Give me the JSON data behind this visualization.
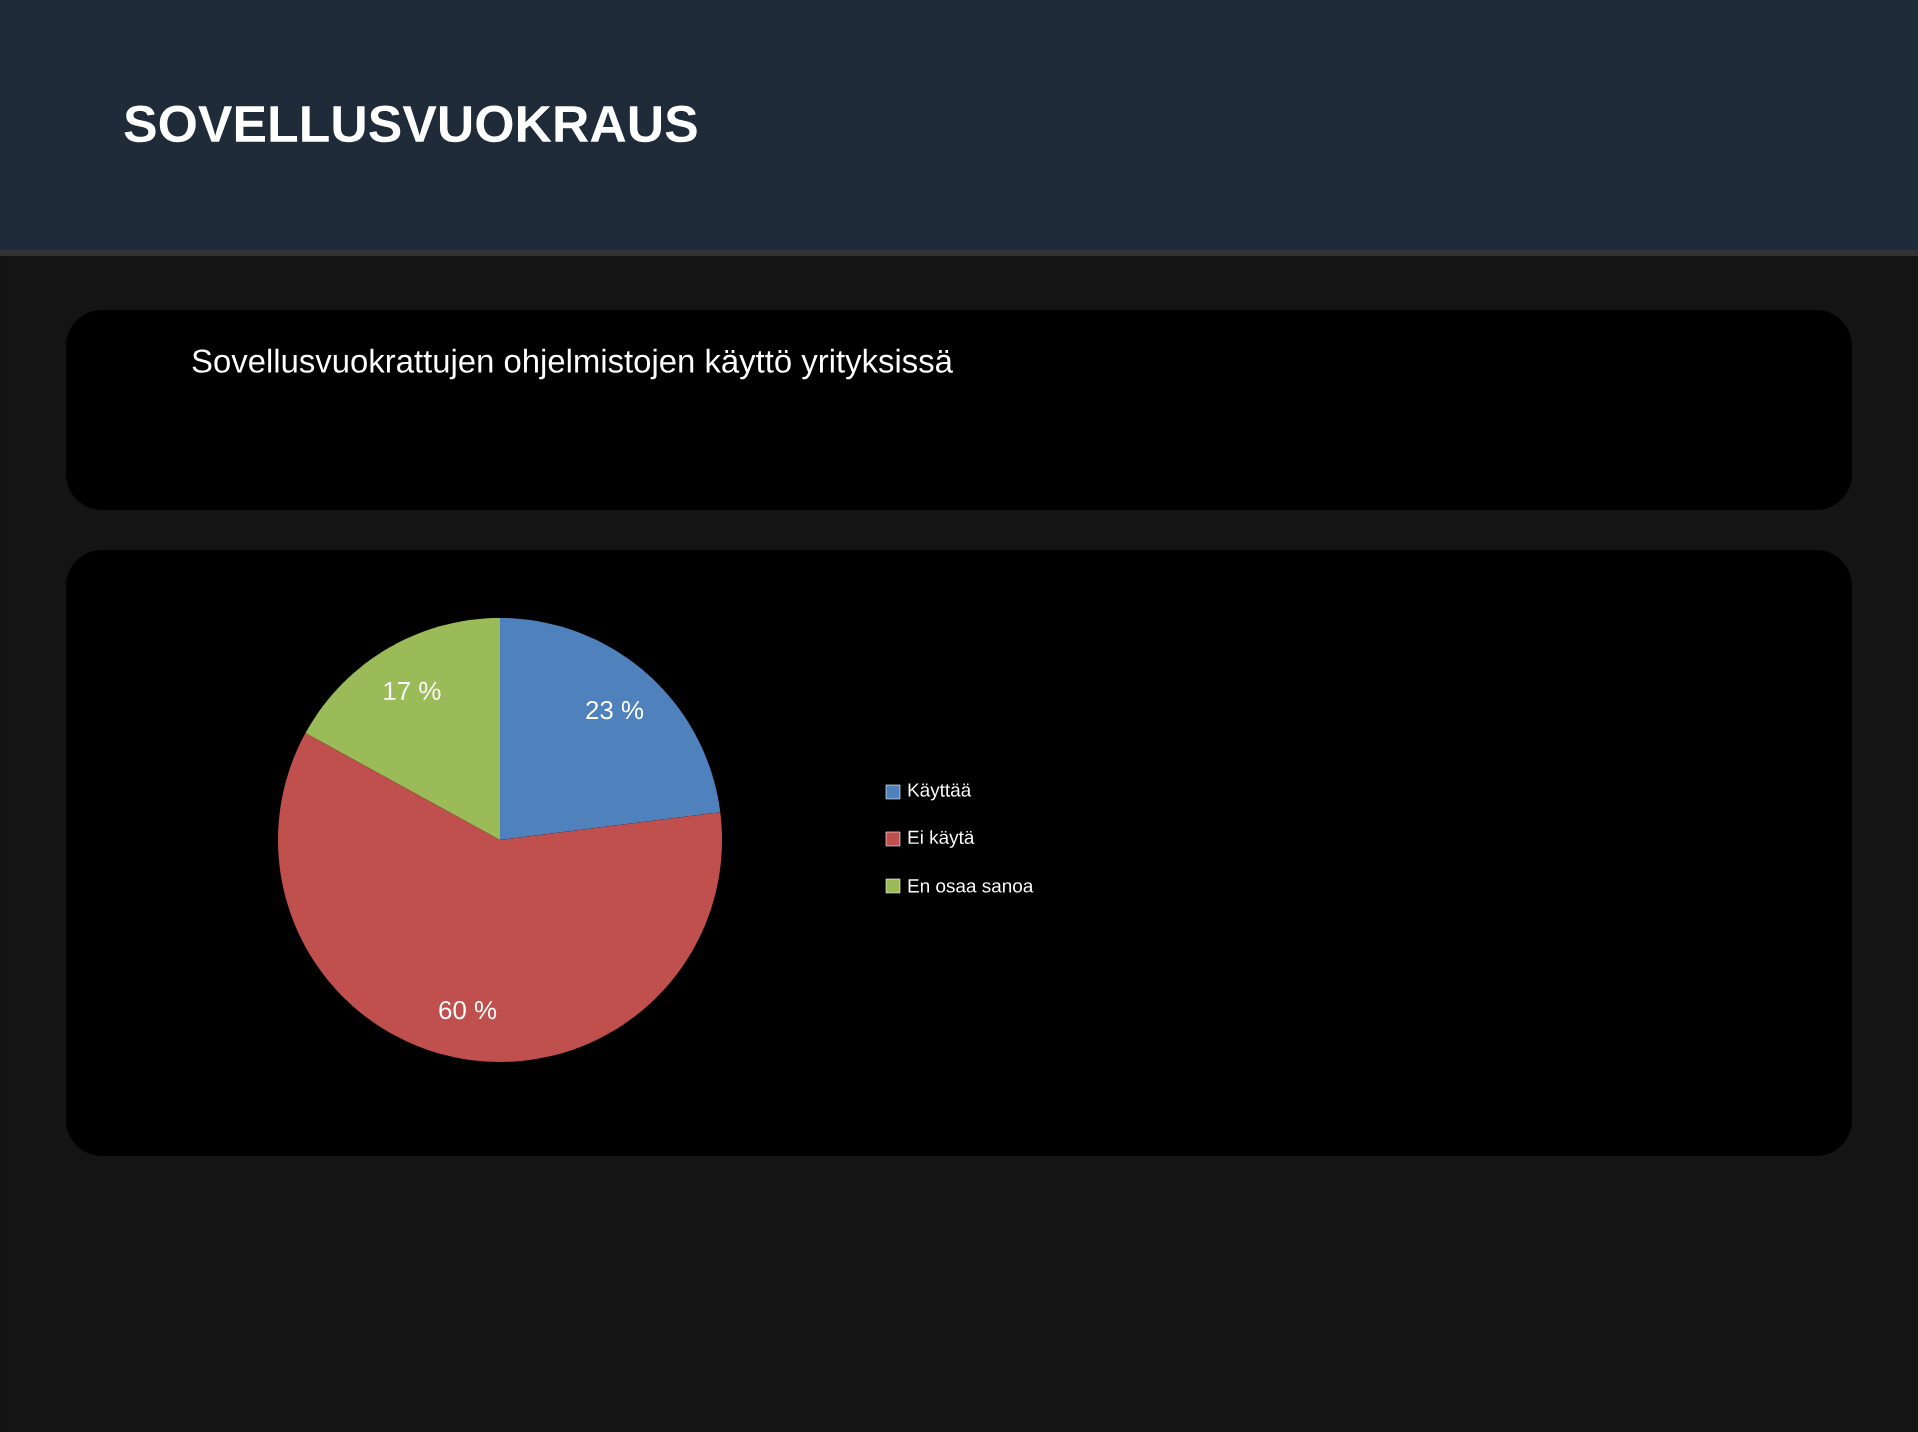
{
  "chart_data": {
    "type": "pie",
    "title": "SOVELLUSVUOKRAUS",
    "subtitle": "Sovellusvuokrattujen ohjelmistojen käyttö yrityksissä",
    "categories": [
      "Käyttää",
      "Ei käytä",
      "En osaa sanoa"
    ],
    "values": [
      23,
      60,
      17
    ],
    "colors": [
      "#4f81bd",
      "#c0504d",
      "#9bbb59"
    ],
    "value_labels": [
      "23 %",
      "60 %",
      "17 %"
    ],
    "legend": "right"
  }
}
